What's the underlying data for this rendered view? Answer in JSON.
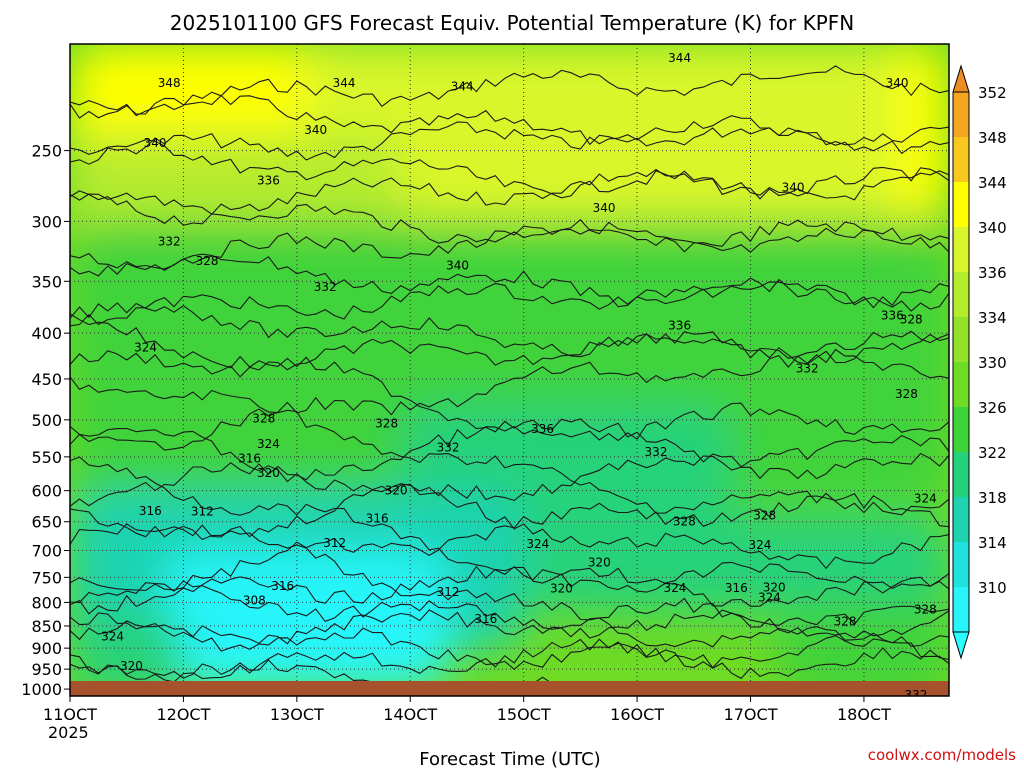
{
  "chart_data": {
    "type": "heatmap",
    "title": "2025101100 GFS Forecast Equiv. Potential Temperature (K) for KPFN",
    "xlabel": "Forecast Time (UTC)",
    "ylabel": "",
    "credit": "coolwx.com/models",
    "x_start_year": "2025",
    "x_axis": {
      "range_hours": [
        0,
        186
      ],
      "ticks": [
        {
          "label": "11OCT",
          "hour": 0
        },
        {
          "label": "12OCT",
          "hour": 24
        },
        {
          "label": "13OCT",
          "hour": 48
        },
        {
          "label": "14OCT",
          "hour": 72
        },
        {
          "label": "15OCT",
          "hour": 96
        },
        {
          "label": "16OCT",
          "hour": 120
        },
        {
          "label": "17OCT",
          "hour": 144
        },
        {
          "label": "18OCT",
          "hour": 168
        }
      ]
    },
    "y_axis": {
      "unit": "hPa",
      "scale": "log",
      "range": [
        1018,
        190
      ],
      "ticks": [
        250,
        300,
        350,
        400,
        450,
        500,
        550,
        600,
        650,
        700,
        750,
        800,
        850,
        900,
        950,
        1000
      ]
    },
    "colorbar": {
      "ticks": [
        352,
        348,
        344,
        340,
        336,
        334,
        330,
        326,
        322,
        318,
        314,
        310
      ],
      "colors": [
        "#f5a620",
        "#f8c81e",
        "#ffff00",
        "#d9f62c",
        "#b6ec2e",
        "#92e229",
        "#6edb24",
        "#3fd33a",
        "#25d27a",
        "#1fd3b0",
        "#20e2dc",
        "#27f5f9"
      ],
      "upper_color": "#ee8c24",
      "lower_color": "#29ffff"
    },
    "grid": true,
    "surface_color": "#a5522d",
    "contour_interval_K": 2,
    "regions": [
      {
        "value": 344,
        "x": [
          0,
          186
        ],
        "p_top": 190,
        "p_bottom": 300
      },
      {
        "value": 341,
        "x": [
          50,
          175
        ],
        "p_top": 190,
        "p_bottom": 420
      },
      {
        "value": 336,
        "x": [
          0,
          70
        ],
        "p_top": 240,
        "p_bottom": 400
      },
      {
        "value": 336,
        "x": [
          100,
          186
        ],
        "p_top": 300,
        "p_bottom": 500
      },
      {
        "value": 328,
        "x": [
          0,
          186
        ],
        "p_top": 300,
        "p_bottom": 620
      },
      {
        "value": 325,
        "x": [
          70,
          140
        ],
        "p_top": 480,
        "p_bottom": 700
      },
      {
        "value": 318,
        "x": [
          0,
          96
        ],
        "p_top": 600,
        "p_bottom": 900
      },
      {
        "value": 312,
        "x": [
          20,
          80
        ],
        "p_top": 700,
        "p_bottom": 1000
      },
      {
        "value": 310,
        "x": [
          28,
          48
        ],
        "p_top": 720,
        "p_bottom": 840
      },
      {
        "value": 322,
        "x": [
          96,
          186
        ],
        "p_top": 640,
        "p_bottom": 820
      },
      {
        "value": 328,
        "x": [
          150,
          186
        ],
        "p_top": 800,
        "p_bottom": 1018
      },
      {
        "value": 324,
        "x": [
          0,
          24
        ],
        "p_top": 820,
        "p_bottom": 1018
      }
    ],
    "contour_labels": [
      {
        "text": "348",
        "hour": 21,
        "p": 210
      },
      {
        "text": "344",
        "hour": 58,
        "p": 210
      },
      {
        "text": "344",
        "hour": 83,
        "p": 212
      },
      {
        "text": "344",
        "hour": 129,
        "p": 197
      },
      {
        "text": "340",
        "hour": 175,
        "p": 210
      },
      {
        "text": "340",
        "hour": 18,
        "p": 245
      },
      {
        "text": "340",
        "hour": 52,
        "p": 237
      },
      {
        "text": "336",
        "hour": 42,
        "p": 270
      },
      {
        "text": "340",
        "hour": 153,
        "p": 275
      },
      {
        "text": "340",
        "hour": 113,
        "p": 290
      },
      {
        "text": "332",
        "hour": 21,
        "p": 316
      },
      {
        "text": "328",
        "hour": 29,
        "p": 332
      },
      {
        "text": "340",
        "hour": 82,
        "p": 336
      },
      {
        "text": "332",
        "hour": 54,
        "p": 355
      },
      {
        "text": "336",
        "hour": 174,
        "p": 382
      },
      {
        "text": "328",
        "hour": 178,
        "p": 386
      },
      {
        "text": "336",
        "hour": 129,
        "p": 392
      },
      {
        "text": "324",
        "hour": 16,
        "p": 415
      },
      {
        "text": "332",
        "hour": 156,
        "p": 438
      },
      {
        "text": "328",
        "hour": 177,
        "p": 468
      },
      {
        "text": "328",
        "hour": 41,
        "p": 498
      },
      {
        "text": "328",
        "hour": 67,
        "p": 505
      },
      {
        "text": "336",
        "hour": 100,
        "p": 512
      },
      {
        "text": "324",
        "hour": 42,
        "p": 532
      },
      {
        "text": "332",
        "hour": 80,
        "p": 537
      },
      {
        "text": "332",
        "hour": 124,
        "p": 543
      },
      {
        "text": "316",
        "hour": 38,
        "p": 552
      },
      {
        "text": "320",
        "hour": 42,
        "p": 573
      },
      {
        "text": "320",
        "hour": 69,
        "p": 600
      },
      {
        "text": "316",
        "hour": 17,
        "p": 632
      },
      {
        "text": "312",
        "hour": 28,
        "p": 633
      },
      {
        "text": "316",
        "hour": 65,
        "p": 645
      },
      {
        "text": "328",
        "hour": 130,
        "p": 650
      },
      {
        "text": "328",
        "hour": 147,
        "p": 640
      },
      {
        "text": "324",
        "hour": 181,
        "p": 612
      },
      {
        "text": "312",
        "hour": 56,
        "p": 687
      },
      {
        "text": "324",
        "hour": 99,
        "p": 688
      },
      {
        "text": "324",
        "hour": 146,
        "p": 690
      },
      {
        "text": "320",
        "hour": 112,
        "p": 722
      },
      {
        "text": "316",
        "hour": 45,
        "p": 767
      },
      {
        "text": "312",
        "hour": 80,
        "p": 779
      },
      {
        "text": "320",
        "hour": 104,
        "p": 772
      },
      {
        "text": "324",
        "hour": 128,
        "p": 771
      },
      {
        "text": "316",
        "hour": 141,
        "p": 771
      },
      {
        "text": "320",
        "hour": 149,
        "p": 770
      },
      {
        "text": "324",
        "hour": 148,
        "p": 790
      },
      {
        "text": "308",
        "hour": 39,
        "p": 796
      },
      {
        "text": "328",
        "hour": 181,
        "p": 815
      },
      {
        "text": "316",
        "hour": 88,
        "p": 835
      },
      {
        "text": "328",
        "hour": 164,
        "p": 840
      },
      {
        "text": "324",
        "hour": 9,
        "p": 873
      },
      {
        "text": "320",
        "hour": 13,
        "p": 942
      },
      {
        "text": "332",
        "hour": 179,
        "p": 1015
      }
    ]
  }
}
